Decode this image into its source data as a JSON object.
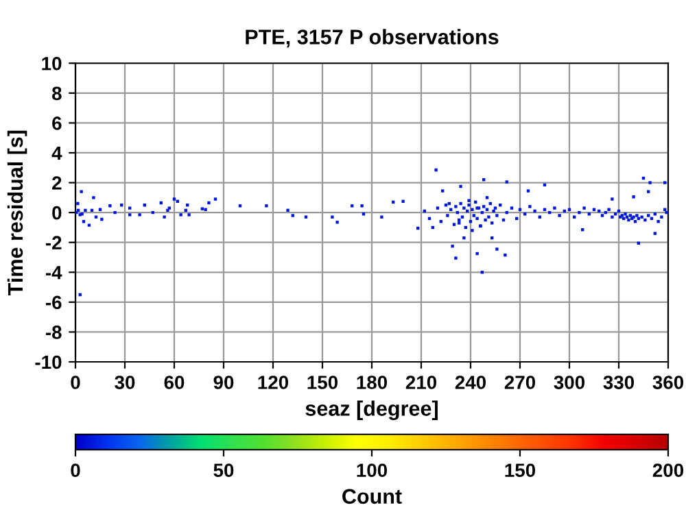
{
  "chart_data": {
    "type": "scatter",
    "title": "PTE, 3157 P observations",
    "xlabel": "seaz [degree]",
    "ylabel": "Time residual [s]",
    "clabel": "Count",
    "xlim": [
      0,
      360
    ],
    "xticks": [
      0,
      30,
      60,
      90,
      120,
      150,
      180,
      210,
      240,
      270,
      300,
      330,
      360
    ],
    "ylim": [
      -10,
      10
    ],
    "yticks": [
      -10,
      -8,
      -6,
      -4,
      -2,
      0,
      2,
      4,
      6,
      8,
      10
    ],
    "clim": [
      0,
      200
    ],
    "cticks": [
      0,
      50,
      100,
      150,
      200
    ],
    "grid": true,
    "marker": "square",
    "x": [
      3.6,
      11,
      1.4,
      2.8,
      5,
      8.3,
      12.5,
      16,
      21,
      28,
      33,
      42,
      47,
      52,
      54,
      57,
      60,
      62,
      64,
      68,
      69,
      77,
      81,
      85,
      100,
      116,
      129,
      132,
      140,
      156,
      159,
      168,
      174,
      175,
      2.8,
      0.5,
      1.7,
      4,
      6,
      10,
      15,
      24,
      33,
      39,
      56,
      67,
      79,
      186,
      219,
      234,
      248,
      262,
      285,
      345,
      349,
      358,
      229,
      231,
      247,
      256,
      261,
      244,
      236,
      253,
      342,
      352,
      308,
      208,
      217,
      193,
      199,
      223,
      275,
      326,
      339,
      348,
      212,
      215,
      220,
      222,
      225,
      226,
      228,
      230,
      231,
      232,
      233,
      234,
      235,
      236,
      237,
      238,
      239,
      240,
      241,
      242,
      243,
      244,
      245,
      246,
      247,
      248,
      249,
      250,
      251,
      252,
      253,
      254,
      255,
      256,
      258,
      260,
      262,
      265,
      268,
      270,
      273,
      276,
      279,
      282,
      285,
      288,
      291,
      294,
      297,
      300,
      303,
      306,
      309,
      312,
      315,
      318,
      320,
      322,
      324,
      326,
      328,
      330,
      331,
      332,
      333,
      334,
      335,
      336,
      337,
      338,
      339,
      340,
      341,
      342,
      344,
      346,
      348,
      350,
      352,
      354,
      356,
      358,
      359,
      227,
      241,
      239,
      246,
      250,
      233,
      244
    ],
    "values": [
      1.4,
      1.0,
      0.6,
      -0.15,
      -0.6,
      -0.85,
      -0.3,
      -0.45,
      0.45,
      0.5,
      0.3,
      0.5,
      0,
      0.65,
      -0.3,
      0.3,
      0.9,
      0.75,
      -0.15,
      0.5,
      -0.15,
      0.25,
      0.65,
      0.9,
      0.45,
      0.45,
      0.15,
      -0.2,
      -0.3,
      -0.3,
      -0.65,
      0.45,
      0.45,
      -0.1,
      -5.5,
      0,
      0.15,
      -0.1,
      0.15,
      0.15,
      0.2,
      0,
      -0.15,
      -0.15,
      0.15,
      0.15,
      0.2,
      -0.3,
      2.85,
      1.75,
      2.2,
      2.05,
      1.85,
      2.3,
      2.0,
      2.0,
      -2.25,
      -3.05,
      -4.0,
      -2.45,
      -2.85,
      -2.75,
      -1.7,
      -1.7,
      -2.05,
      -1.4,
      -1.15,
      -1.05,
      -1.0,
      0.7,
      0.75,
      1.45,
      1.45,
      0.9,
      1.05,
      1.4,
      0.1,
      -0.4,
      0.3,
      -0.6,
      0.5,
      -0.2,
      0.2,
      -0.8,
      0.4,
      0.0,
      -0.5,
      0.6,
      -0.3,
      0.3,
      -1.0,
      0.1,
      0.5,
      -0.6,
      0.2,
      -0.2,
      0.7,
      -0.4,
      0.3,
      -0.9,
      0.0,
      0.4,
      -0.5,
      0.2,
      -0.3,
      0.6,
      -0.7,
      0.1,
      0.3,
      -0.2,
      0.5,
      -0.5,
      0.0,
      0.3,
      -0.4,
      0.2,
      -0.1,
      0.4,
      0.1,
      -0.3,
      0.2,
      0.0,
      0.3,
      -0.2,
      0.1,
      0.2,
      -0.3,
      0.0,
      0.3,
      -0.1,
      0.2,
      0.1,
      -0.2,
      0.0,
      0.2,
      -0.3,
      -0.1,
      0.1,
      -0.3,
      -0.2,
      -0.4,
      -0.1,
      -0.3,
      -0.5,
      -0.2,
      -0.4,
      -0.3,
      -0.6,
      -0.2,
      -0.4,
      -0.3,
      -0.5,
      -0.2,
      -0.4,
      -0.1,
      -0.6,
      -0.3,
      0.2,
      0.0,
      0.6,
      -1.2,
      0.8,
      -0.9,
      1.0,
      -0.7,
      0.3
    ],
    "cvalues": [
      5,
      5,
      5,
      5,
      5,
      5,
      5,
      5,
      5,
      5,
      5,
      5,
      5,
      5,
      5,
      5,
      5,
      5,
      5,
      5,
      5,
      5,
      5,
      5,
      5,
      5,
      5,
      5,
      5,
      5,
      5,
      5,
      5,
      5,
      5,
      5,
      5,
      5,
      5,
      5,
      5,
      5,
      5,
      5,
      5,
      5,
      5,
      5,
      5,
      5,
      5,
      5,
      5,
      5,
      5,
      5,
      5,
      5,
      5,
      5,
      5,
      5,
      5,
      5,
      5,
      5,
      5,
      5,
      5,
      5,
      5,
      5,
      5,
      5,
      5,
      5,
      5,
      5,
      5,
      5,
      5,
      5,
      5,
      5,
      5,
      5,
      5,
      5,
      5,
      5,
      5,
      5,
      5,
      5,
      5,
      5,
      5,
      5,
      5,
      5,
      5,
      5,
      5,
      5,
      5,
      5,
      5,
      5,
      5,
      5,
      5,
      5,
      5,
      5,
      5,
      5,
      5,
      5,
      5,
      5,
      5,
      5,
      5,
      5,
      5,
      5,
      5,
      5,
      5,
      5,
      5,
      5,
      5,
      5,
      5,
      5,
      5,
      5,
      5,
      5,
      5,
      5,
      5,
      5,
      5,
      5,
      5,
      5,
      5,
      5,
      5,
      5,
      5,
      5,
      5,
      5,
      5,
      5,
      5,
      5,
      5,
      5,
      5,
      5,
      5,
      5
    ]
  }
}
